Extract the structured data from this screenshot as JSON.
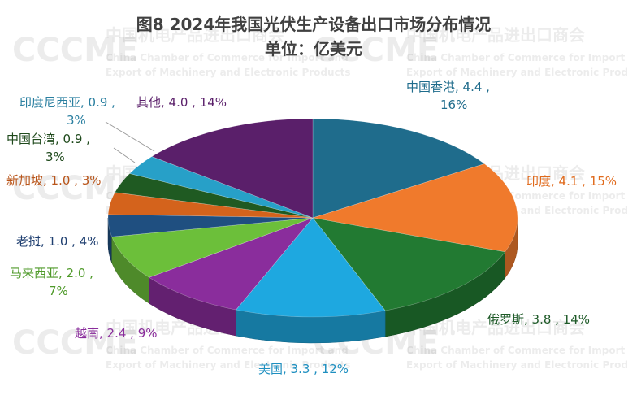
{
  "chart_data": {
    "type": "pie",
    "title": "图8  2024年我国光伏生产设备出口市场分布情况",
    "subtitle": "单位：亿美元",
    "slices": [
      {
        "label": "中国香港",
        "value": 4.4,
        "percent": "16%",
        "color": "#1f6c8c",
        "label_color": "#1f6c8c"
      },
      {
        "label": "印度",
        "value": 4.1,
        "percent": "15%",
        "color": "#f07a2c",
        "label_color": "#e06a1c"
      },
      {
        "label": "俄罗斯",
        "value": 3.8,
        "percent": "14%",
        "color": "#227a32",
        "label_color": "#1e5a28"
      },
      {
        "label": "美国",
        "value": 3.3,
        "percent": "12%",
        "color": "#1ea8e0",
        "label_color": "#1e8fc0"
      },
      {
        "label": "越南",
        "value": 2.4,
        "percent": "9%",
        "color": "#8a2d9c",
        "label_color": "#8a2d9c"
      },
      {
        "label": "马来西亚",
        "value": 2.0,
        "percent": "7%",
        "color": "#6cbf3a",
        "label_color": "#4f9a2a"
      },
      {
        "label": "老挝",
        "value": 1.0,
        "percent": "4%",
        "color": "#1f4f80",
        "label_color": "#1f3f70"
      },
      {
        "label": "新加坡",
        "value": 1.0,
        "percent": "3%",
        "color": "#d4631c",
        "label_color": "#b9551a"
      },
      {
        "label": "中国台湾",
        "value": 0.9,
        "percent": "3%",
        "color": "#1f5a22",
        "label_color": "#1f4a1c"
      },
      {
        "label": "印度尼西亚",
        "value": 0.9,
        "percent": "3%",
        "color": "#27a0c8",
        "label_color": "#2a7fa0"
      },
      {
        "label": "其他",
        "value": 4.0,
        "percent": "14%",
        "color": "#5a1f6a",
        "label_color": "#5a1f6a"
      }
    ]
  },
  "watermark": {
    "logo": "CCCME",
    "cn": "中国机电产品进出口商会",
    "en1": "China Chamber of Commerce for Import and",
    "en2": "Export of Machinery and Electronic Products"
  }
}
